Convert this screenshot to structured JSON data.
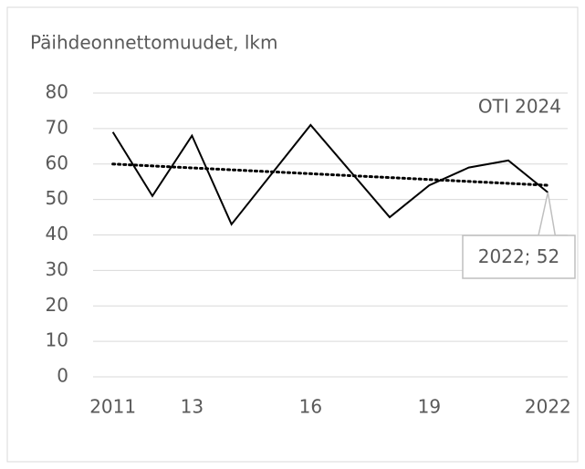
{
  "chart_data": {
    "type": "line",
    "title": "Päihdeonnettomuudet, lkm",
    "annotation": "OTI 2024",
    "categories": [
      "2011",
      null,
      "13",
      null,
      null,
      "16",
      null,
      null,
      "19",
      null,
      null,
      "2022"
    ],
    "series": [
      {
        "color": "#000000",
        "values": [
          69,
          51,
          68,
          43,
          57,
          71,
          58,
          45,
          54,
          59,
          61,
          52
        ],
        "value_labels": [
          null,
          null,
          null,
          null,
          null,
          null,
          null,
          null,
          null,
          null,
          null,
          "2022; 52"
        ]
      }
    ],
    "trendline": [
      60,
      54
    ],
    "ylim": [
      0,
      80
    ],
    "yticks": [
      0,
      10,
      20,
      30,
      40,
      50,
      60,
      70,
      80
    ],
    "grid": true
  }
}
